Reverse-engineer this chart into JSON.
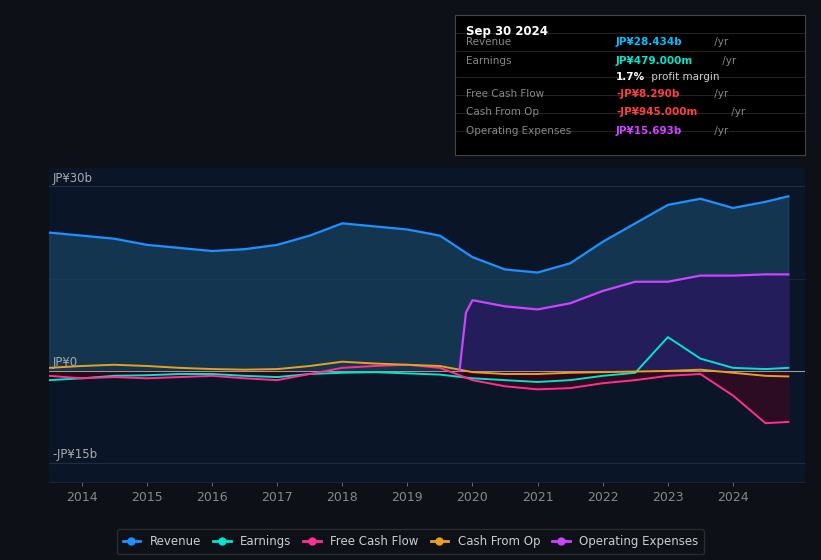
{
  "bg_color": "#0d1117",
  "plot_bg_color": "#0a1628",
  "years": [
    2013.5,
    2014,
    2014.5,
    2015,
    2015.5,
    2016,
    2016.5,
    2017,
    2017.5,
    2018,
    2018.5,
    2019,
    2019.5,
    2020,
    2020.5,
    2021,
    2021.5,
    2022,
    2022.5,
    2023,
    2023.5,
    2024,
    2024.5,
    2024.85
  ],
  "revenue": [
    22.5,
    22.0,
    21.5,
    20.5,
    20.0,
    19.5,
    19.8,
    20.5,
    22.0,
    24.0,
    23.5,
    23.0,
    22.0,
    18.5,
    16.5,
    16.0,
    17.5,
    21.0,
    24.0,
    27.0,
    28.0,
    26.5,
    27.5,
    28.4
  ],
  "earnings": [
    -1.5,
    -1.2,
    -0.8,
    -0.7,
    -0.5,
    -0.5,
    -0.8,
    -1.0,
    -0.5,
    -0.3,
    -0.2,
    -0.4,
    -0.6,
    -1.2,
    -1.5,
    -1.8,
    -1.5,
    -0.8,
    -0.3,
    5.5,
    2.0,
    0.5,
    0.3,
    0.5
  ],
  "free_cash_flow": [
    -0.8,
    -1.2,
    -1.0,
    -1.2,
    -1.0,
    -0.8,
    -1.2,
    -1.5,
    -0.5,
    0.5,
    0.8,
    1.0,
    0.5,
    -1.5,
    -2.5,
    -3.0,
    -2.8,
    -2.0,
    -1.5,
    -0.8,
    -0.5,
    -4.0,
    -8.5,
    -8.3
  ],
  "cash_from_op": [
    0.5,
    0.8,
    1.0,
    0.8,
    0.5,
    0.3,
    0.2,
    0.3,
    0.8,
    1.5,
    1.2,
    1.0,
    0.8,
    -0.2,
    -0.5,
    -0.5,
    -0.3,
    -0.2,
    -0.1,
    0.0,
    0.2,
    -0.3,
    -0.8,
    -0.9
  ],
  "op_expenses_years": [
    2019.8,
    2019.9,
    2020,
    2020.5,
    2021,
    2021.5,
    2022,
    2022.5,
    2023,
    2023.5,
    2024,
    2024.5,
    2024.85
  ],
  "op_expenses": [
    0,
    9.5,
    11.5,
    10.5,
    10.0,
    11.0,
    13.0,
    14.5,
    14.5,
    15.5,
    15.5,
    15.7,
    15.693
  ],
  "revenue_color": "#1e90ff",
  "earnings_color": "#00e5cc",
  "free_cash_flow_color": "#ff3090",
  "cash_from_op_color": "#e8a020",
  "op_expenses_color": "#cc44ff",
  "revenue_fill_color": "#1a4a6a",
  "op_fill_color": "#2a1560",
  "dark_fill_color": "#3a0820",
  "ylim": [
    -18,
    33
  ],
  "xlim": [
    2013.5,
    2025.1
  ],
  "x_ticks": [
    2014,
    2015,
    2016,
    2017,
    2018,
    2019,
    2020,
    2021,
    2022,
    2023,
    2024
  ],
  "grid_color": "#1e2e3e",
  "legend_items": [
    "Revenue",
    "Earnings",
    "Free Cash Flow",
    "Cash From Op",
    "Operating Expenses"
  ],
  "legend_colors": [
    "#1e90ff",
    "#00e5cc",
    "#ff3090",
    "#e8a020",
    "#cc44ff"
  ],
  "info_box": {
    "title": "Sep 30 2024",
    "rows": [
      {
        "label": "Revenue",
        "value": "JP¥28.434b",
        "suffix": " /yr",
        "value_color": "#00bfff"
      },
      {
        "label": "Earnings",
        "value": "JP¥479.000m",
        "suffix": " /yr",
        "value_color": "#00e5cc"
      },
      {
        "label": "",
        "value": "1.7%",
        "suffix": " profit margin",
        "value_color": "#ffffff",
        "is_margin": true
      },
      {
        "label": "Free Cash Flow",
        "value": "-JP¥8.290b",
        "suffix": " /yr",
        "value_color": "#ff4040"
      },
      {
        "label": "Cash From Op",
        "value": "-JP¥945.000m",
        "suffix": " /yr",
        "value_color": "#ff4040"
      },
      {
        "label": "Operating Expenses",
        "value": "JP¥15.693b",
        "suffix": " /yr",
        "value_color": "#cc44ff"
      }
    ]
  }
}
